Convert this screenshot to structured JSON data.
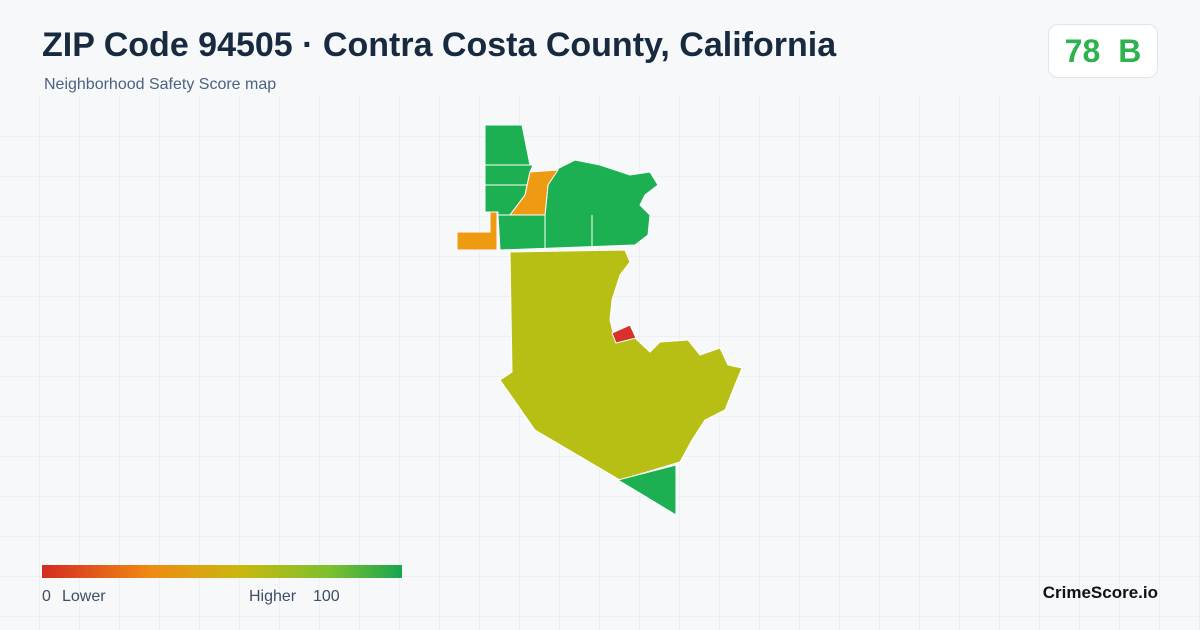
{
  "header": {
    "title": "ZIP Code 94505 · Contra Costa County, California",
    "subtitle": "Neighborhood Safety Score map"
  },
  "score": {
    "value": "78",
    "grade": "B"
  },
  "legend": {
    "min": "0",
    "min_label": "Lower",
    "max_label": "Higher",
    "max": "100"
  },
  "brand": "CrimeScore.io"
}
